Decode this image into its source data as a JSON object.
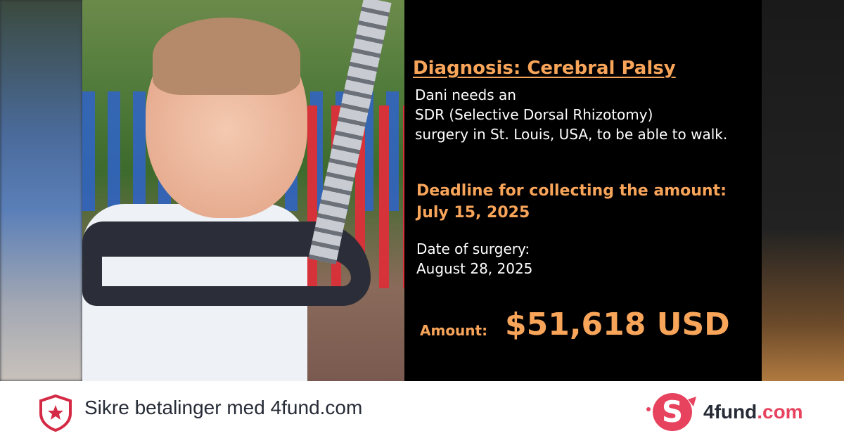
{
  "campaign": {
    "diagnosis": "Diagnosis: Cerebral Palsy",
    "description_lines": [
      "Dani needs an",
      "SDR (Selective Dorsal Rhizotomy)",
      "surgery in St. Louis, USA, to be able to walk."
    ],
    "deadline_label": "Deadline for collecting the amount:",
    "deadline_date": "July 15, 2025",
    "surgery_label": "Date of surgery:",
    "surgery_date": "August 28, 2025",
    "amount_label": "Amount:",
    "amount_value": "$51,618 USD"
  },
  "footer": {
    "secure_text": "Sikre betalinger med 4fund.com",
    "logo_main": "4fund",
    "logo_suffix": ".com",
    "brand_color": "#e7435f",
    "icons": [
      "shield-star-icon",
      "piggy-bank-logo-icon"
    ]
  },
  "colors": {
    "highlight": "#f8a55a",
    "panel": "#000000"
  }
}
